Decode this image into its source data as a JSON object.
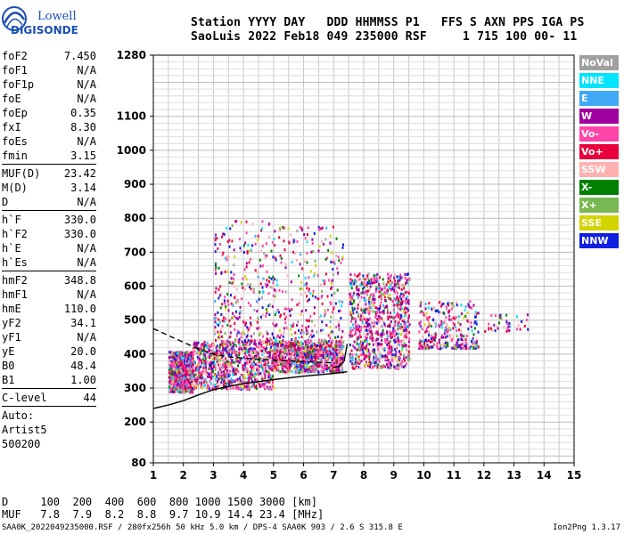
{
  "logo": {
    "line1": "Lowell",
    "line2": "DIGISONDE"
  },
  "header": {
    "line1": "Station YYYY DAY   DDD HHMMSS P1   FFS S AXN PPS IGA PS",
    "line2": "SaoLuis 2022 Feb18 049 235000 RSF     1 715 100 00- 11"
  },
  "params": [
    {
      "label": "foF2",
      "value": "7.450"
    },
    {
      "label": "foF1",
      "value": "N/A"
    },
    {
      "label": "foF1p",
      "value": "N/A"
    },
    {
      "label": "foE",
      "value": "N/A"
    },
    {
      "label": "foEp",
      "value": "0.35"
    },
    {
      "label": "fxI",
      "value": "8.30"
    },
    {
      "label": "foEs",
      "value": "N/A"
    },
    {
      "label": "fmin",
      "value": "3.15"
    },
    {
      "sep": true
    },
    {
      "label": "MUF(D)",
      "value": "23.42"
    },
    {
      "label": "M(D)",
      "value": "3.14"
    },
    {
      "label": "D",
      "value": "N/A"
    },
    {
      "sep": true
    },
    {
      "label": "h`F",
      "value": "330.0"
    },
    {
      "label": "h`F2",
      "value": "330.0"
    },
    {
      "label": "h`E",
      "value": "N/A"
    },
    {
      "label": "h`Es",
      "value": "N/A"
    },
    {
      "sep": true
    },
    {
      "label": "hmF2",
      "value": "348.8"
    },
    {
      "label": "hmF1",
      "value": "N/A"
    },
    {
      "label": "hmE",
      "value": "110.0"
    },
    {
      "label": "yF2",
      "value": "34.1"
    },
    {
      "label": "yF1",
      "value": "N/A"
    },
    {
      "label": "yE",
      "value": "20.0"
    },
    {
      "label": "B0",
      "value": "48.4"
    },
    {
      "label": "B1",
      "value": "1.00"
    },
    {
      "sep": true
    },
    {
      "label": "C-level",
      "value": "44"
    },
    {
      "sep": true
    },
    {
      "text": "Auto:"
    },
    {
      "text": "Artist5"
    },
    {
      "text": "500200"
    }
  ],
  "legend": [
    {
      "label": "NoVal",
      "color": "#a0a0a0"
    },
    {
      "label": "NNE",
      "color": "#00e5ff"
    },
    {
      "label": "E",
      "color": "#3fa9f5"
    },
    {
      "label": "W",
      "color": "#a000a0"
    },
    {
      "label": "Vo-",
      "color": "#ff44aa"
    },
    {
      "label": "Vo+",
      "color": "#e8003c"
    },
    {
      "label": "SSW",
      "color": "#ffb0b0"
    },
    {
      "label": "X-",
      "color": "#008000"
    },
    {
      "label": "X+",
      "color": "#78b850"
    },
    {
      "label": "SSE",
      "color": "#d4d400"
    },
    {
      "label": "NNW",
      "color": "#1020e0"
    }
  ],
  "bottom": {
    "d_row": "D     100  200  400  600  800 1000 1500 3000 [km]",
    "muf_row": "MUF   7.8  7.9  8.2  8.8  9.7 10.9 14.4 23.4 [MHz]",
    "footer": "SAA0K_2022049235000.RSF / 280fx256h 50 kHz 5.0 km / DPS-4 SAA0K 903 / 2.6 S 315.8 E",
    "version": "Ion2Png 1.3.17"
  },
  "chart_data": {
    "type": "scatter",
    "title": "",
    "xlabel": "",
    "ylabel": "",
    "xlim": [
      1,
      15
    ],
    "ylim": [
      80,
      1280
    ],
    "x_ticks": [
      1,
      2,
      3,
      4,
      5,
      6,
      7,
      8,
      9,
      10,
      11,
      12,
      13,
      14,
      15
    ],
    "y_ticks": [
      80,
      200,
      300,
      400,
      500,
      600,
      700,
      800,
      900,
      1000,
      1100,
      1280
    ],
    "grid": true,
    "legend_position": "right",
    "echo_clusters": [
      {
        "x_range": [
          1.5,
          2.3
        ],
        "y_range": [
          290,
          410
        ],
        "density": "high"
      },
      {
        "x_range": [
          2.3,
          5.0
        ],
        "y_range": [
          300,
          440
        ],
        "density": "high"
      },
      {
        "x_range": [
          3.0,
          5.0
        ],
        "y_range": [
          440,
          800
        ],
        "density": "medium"
      },
      {
        "x_range": [
          5.0,
          7.3
        ],
        "y_range": [
          350,
          440
        ],
        "density": "high"
      },
      {
        "x_range": [
          5.0,
          7.3
        ],
        "y_range": [
          440,
          780
        ],
        "density": "medium"
      },
      {
        "x_range": [
          7.5,
          9.5
        ],
        "y_range": [
          360,
          640
        ],
        "density": "high"
      },
      {
        "x_range": [
          9.8,
          11.8
        ],
        "y_range": [
          420,
          560
        ],
        "density": "medium"
      },
      {
        "x_range": [
          12.0,
          13.5
        ],
        "y_range": [
          470,
          520
        ],
        "density": "low"
      }
    ],
    "trace_lower": {
      "x": [
        1.0,
        1.5,
        2.0,
        2.5,
        3.0,
        3.5,
        4.0,
        5.0,
        6.0,
        7.0,
        7.45
      ],
      "y": [
        240,
        250,
        263,
        280,
        295,
        305,
        313,
        325,
        335,
        343,
        348
      ]
    },
    "trace_dashed": {
      "x": [
        1.0,
        1.5,
        2.0,
        2.5,
        3.0,
        3.5,
        4.0,
        5.0,
        6.0,
        7.0
      ],
      "y": [
        475,
        455,
        435,
        415,
        400,
        392,
        388,
        382,
        378,
        374
      ]
    },
    "trace_vertical": {
      "x": [
        7.0,
        7.2,
        7.35,
        7.45
      ],
      "y": [
        360,
        365,
        380,
        430
      ]
    }
  }
}
